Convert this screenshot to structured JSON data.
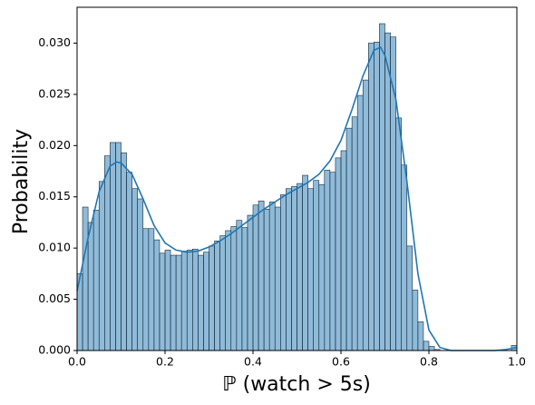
{
  "chart_data": {
    "type": "histogram",
    "xlabel": "ℙ (watch > 5s)",
    "ylabel": "Probability",
    "color": "#1f77b4",
    "bins": [
      0,
      0.0125,
      0.025,
      0.0375,
      0.05,
      0.0625,
      0.075,
      0.0875,
      0.1,
      0.1125,
      0.125,
      0.1375,
      0.15,
      0.1625,
      0.175,
      0.1875,
      0.2,
      0.2125,
      0.225,
      0.2375,
      0.25,
      0.2625,
      0.275,
      0.2875,
      0.3,
      0.3125,
      0.325,
      0.3375,
      0.35,
      0.3625,
      0.375,
      0.3875,
      0.4,
      0.4125,
      0.425,
      0.4375,
      0.45,
      0.4625,
      0.475,
      0.4875,
      0.5,
      0.5125,
      0.525,
      0.5375,
      0.55,
      0.5625,
      0.575,
      0.5875,
      0.6,
      0.6125,
      0.625,
      0.6375,
      0.65,
      0.6625,
      0.675,
      0.6875,
      0.7,
      0.7125,
      0.725,
      0.7375,
      0.75,
      0.7625,
      0.775,
      0.7875,
      0.8,
      0.8125,
      0.825,
      0.8375,
      0.85,
      0.8625,
      0.875,
      0.8875,
      0.9,
      0.9125,
      0.925,
      0.9375,
      0.95,
      0.9625,
      0.975,
      0.9875,
      1
    ],
    "values": [
      0.0075,
      0.014,
      0.0125,
      0.0137,
      0.0165,
      0.019,
      0.0203,
      0.0203,
      0.0193,
      0.0174,
      0.0158,
      0.0148,
      0.0119,
      0.0119,
      0.0108,
      0.0095,
      0.0098,
      0.0093,
      0.0093,
      0.0097,
      0.0098,
      0.0099,
      0.0093,
      0.0096,
      0.0102,
      0.0107,
      0.0112,
      0.0117,
      0.0121,
      0.0127,
      0.012,
      0.0132,
      0.0142,
      0.0146,
      0.0138,
      0.0145,
      0.014,
      0.0152,
      0.0158,
      0.016,
      0.0163,
      0.0171,
      0.0158,
      0.0166,
      0.0162,
      0.0176,
      0.0174,
      0.0188,
      0.0195,
      0.0217,
      0.0228,
      0.0249,
      0.0264,
      0.03,
      0.0301,
      0.0319,
      0.031,
      0.0306,
      0.0227,
      0.0181,
      0.0102,
      0.0059,
      0.0028,
      0.0009,
      0.0004,
      0.0001,
      0,
      0,
      0,
      0,
      0,
      0,
      0,
      0,
      0,
      0,
      0,
      0,
      0,
      0.0005
    ],
    "kde": {
      "color": "#1f77b4",
      "x": [
        0,
        0.025,
        0.05,
        0.075,
        0.09,
        0.1,
        0.125,
        0.15,
        0.175,
        0.2,
        0.225,
        0.25,
        0.275,
        0.3,
        0.325,
        0.35,
        0.375,
        0.4,
        0.425,
        0.45,
        0.475,
        0.5,
        0.525,
        0.55,
        0.575,
        0.6,
        0.625,
        0.65,
        0.675,
        0.69,
        0.7,
        0.725,
        0.75,
        0.775,
        0.8,
        0.825,
        0.85,
        0.9,
        0.95,
        0.975,
        1
      ],
      "values": [
        0.0058,
        0.011,
        0.0155,
        0.018,
        0.0184,
        0.0183,
        0.0172,
        0.0148,
        0.0122,
        0.0105,
        0.0098,
        0.0096,
        0.0097,
        0.0101,
        0.0107,
        0.0114,
        0.0122,
        0.013,
        0.0138,
        0.0145,
        0.0152,
        0.0158,
        0.0164,
        0.0172,
        0.0185,
        0.0205,
        0.0235,
        0.0268,
        0.0293,
        0.0296,
        0.0288,
        0.0245,
        0.0165,
        0.0075,
        0.002,
        0.0003,
        0,
        0,
        0,
        0.0001,
        0.0003
      ]
    },
    "xlim": [
      0,
      1
    ],
    "ylim": [
      0,
      0.0335
    ],
    "xticks": [
      {
        "value": 0,
        "label": "0.0"
      },
      0.2,
      0.4,
      0.6,
      0.8,
      {
        "value": 1,
        "label": "1.0"
      }
    ],
    "yticks": [
      {
        "value": 0,
        "label": "0.000"
      },
      0.005,
      {
        "value": 0.01,
        "label": "0.010"
      },
      0.015,
      {
        "value": 0.02,
        "label": "0.020"
      },
      0.025,
      {
        "value": 0.03,
        "label": "0.030"
      }
    ]
  }
}
